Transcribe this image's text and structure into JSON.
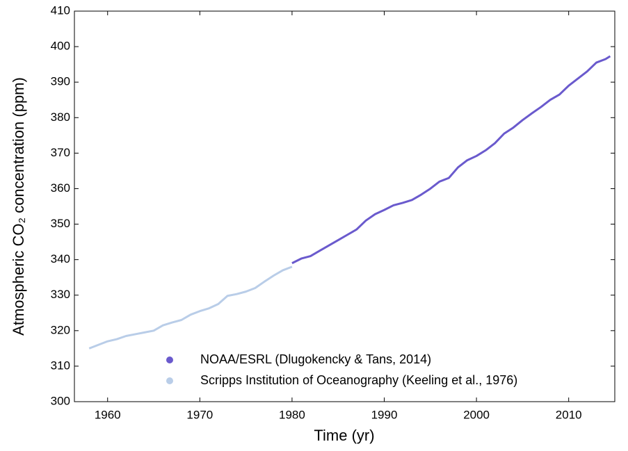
{
  "chart_data": {
    "type": "line",
    "x_label": "Time (yr)",
    "y_label": "Atmospheric CO₂ concentration (ppm)",
    "xlim": [
      1956.4,
      2015
    ],
    "xticks": [
      1960,
      1970,
      1980,
      1990,
      2000,
      2010
    ],
    "ylim": [
      300,
      410
    ],
    "yticks": [
      300,
      310,
      320,
      330,
      340,
      350,
      360,
      370,
      380,
      390,
      400,
      410
    ],
    "grid": false,
    "legend": "lower right",
    "series": [
      {
        "name": "NOAA/ESRL (Dlugokencky & Tans, 2014)",
        "color": "#6a5acd",
        "x": [
          1980,
          1981,
          1982,
          1983,
          1984,
          1985,
          1986,
          1987,
          1988,
          1989,
          1990,
          1991,
          1992,
          1993,
          1994,
          1995,
          1996,
          1997,
          1998,
          1999,
          2000,
          2001,
          2002,
          2003,
          2004,
          2005,
          2006,
          2007,
          2008,
          2009,
          2010,
          2011,
          2012,
          2013,
          2014,
          2014.5
        ],
        "values": [
          339,
          340.3,
          341,
          342.5,
          344,
          345.5,
          347,
          348.5,
          351,
          352.8,
          354,
          355.3,
          356,
          356.8,
          358.3,
          360,
          362,
          363,
          366,
          368,
          369.2,
          370.8,
          372.8,
          375.5,
          377.2,
          379.3,
          381.2,
          383,
          385,
          386.5,
          389,
          391,
          393,
          395.5,
          396.5,
          397.3
        ]
      },
      {
        "name": "Scripps Institution of Oceanography (Keeling et al., 1976)",
        "color": "#b9cde8",
        "x": [
          1958,
          1959,
          1960,
          1961,
          1962,
          1963,
          1964,
          1965,
          1966,
          1967,
          1968,
          1969,
          1970,
          1971,
          1972,
          1973,
          1974,
          1975,
          1976,
          1977,
          1978,
          1979,
          1980
        ],
        "values": [
          315,
          316,
          317,
          317.6,
          318.5,
          319,
          319.5,
          320,
          321.5,
          322.3,
          323,
          324.5,
          325.5,
          326.3,
          327.5,
          329.8,
          330.3,
          331,
          332,
          333.8,
          335.5,
          337,
          338
        ]
      }
    ]
  }
}
